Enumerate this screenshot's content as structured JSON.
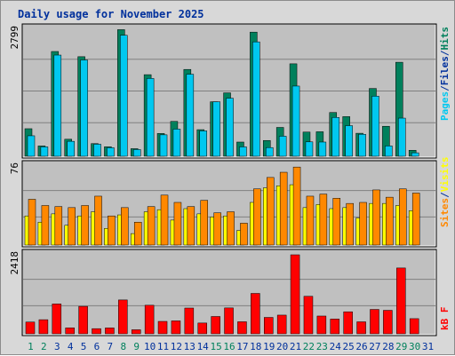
{
  "page": {
    "title": "Daily usage for November 2025"
  },
  "chart_data": [
    {
      "type": "bar",
      "name": "hits-files-pages",
      "categories": [
        "1",
        "2",
        "3",
        "4",
        "5",
        "6",
        "7",
        "8",
        "9",
        "10",
        "11",
        "12",
        "13",
        "14",
        "15",
        "16",
        "17",
        "18",
        "19",
        "20",
        "21",
        "22",
        "23",
        "24",
        "25",
        "26",
        "27",
        "28",
        "29",
        "30",
        "31"
      ],
      "weekend_days": [
        "1",
        "2",
        "8",
        "9",
        "15",
        "16",
        "22",
        "23",
        "29",
        "30"
      ],
      "ymax_label": "2799",
      "ylim": [
        0,
        2799
      ],
      "series": [
        {
          "name": "Hits",
          "color": "#00805c",
          "values": [
            599,
            224,
            2278,
            370,
            2165,
            275,
            206,
            2753,
            165,
            1774,
            495,
            758,
            1888,
            578,
            1185,
            1379,
            309,
            2699,
            343,
            627,
            2010,
            526,
            533,
            952,
            862,
            500,
            1474,
            652,
            2044,
            130,
            0
          ]
        },
        {
          "name": "Files",
          "color": "#00c8f0",
          "values": [
            445,
            204,
            2200,
            325,
            2094,
            262,
            185,
            2630,
            146,
            1692,
            466,
            590,
            1783,
            552,
            1185,
            1262,
            204,
            2487,
            189,
            436,
            1526,
            313,
            309,
            844,
            665,
            478,
            1306,
            224,
            829,
            75,
            0
          ]
        },
        {
          "name": "Pages",
          "color": "#00c8f0",
          "values": [
            0,
            0,
            0,
            0,
            0,
            0,
            0,
            0,
            0,
            0,
            0,
            0,
            0,
            0,
            0,
            0,
            0,
            0,
            0,
            0,
            0,
            0,
            0,
            0,
            0,
            0,
            0,
            0,
            0,
            0,
            0
          ]
        }
      ],
      "y_legend": {
        "pages": "Pages",
        "files": "Files",
        "hits": "Hits",
        "separator": "/"
      }
    },
    {
      "type": "bar",
      "name": "sites-visits",
      "categories": [
        "1",
        "2",
        "3",
        "4",
        "5",
        "6",
        "7",
        "8",
        "9",
        "10",
        "11",
        "12",
        "13",
        "14",
        "15",
        "16",
        "17",
        "18",
        "19",
        "20",
        "21",
        "22",
        "23",
        "24",
        "25",
        "26",
        "27",
        "28",
        "29",
        "30",
        "31"
      ],
      "ymax_label": "76",
      "ylim": [
        0,
        76
      ],
      "series": [
        {
          "name": "Visits",
          "color": "#ffff00",
          "values": [
            28,
            22,
            30,
            19,
            28,
            32,
            16,
            29,
            11,
            32,
            34,
            24,
            35,
            30,
            27,
            28,
            14,
            41,
            55,
            57,
            58,
            36,
            39,
            35,
            36,
            26,
            40,
            40,
            38,
            33,
            0
          ]
        },
        {
          "name": "Sites",
          "color": "#ff8800",
          "values": [
            44,
            38,
            37,
            36,
            38,
            47,
            28,
            36,
            22,
            37,
            48,
            41,
            37,
            43,
            31,
            32,
            21,
            54,
            65,
            70,
            75,
            47,
            49,
            45,
            40,
            41,
            53,
            46,
            54,
            50,
            0
          ]
        }
      ],
      "y_legend": {
        "sites": "Sites",
        "visits": "Visits",
        "separator": "/"
      }
    },
    {
      "type": "bar",
      "name": "kbytes",
      "categories": [
        "1",
        "2",
        "3",
        "4",
        "5",
        "6",
        "7",
        "8",
        "9",
        "10",
        "11",
        "12",
        "13",
        "14",
        "15",
        "16",
        "17",
        "18",
        "19",
        "20",
        "21",
        "22",
        "23",
        "24",
        "25",
        "26",
        "27",
        "28",
        "29",
        "30",
        "31"
      ],
      "ymax_label": "2418",
      "ylim": [
        0,
        2418
      ],
      "series": [
        {
          "name": "kB F",
          "color": "#ff0000",
          "values": [
            360,
            432,
            914,
            182,
            840,
            158,
            180,
            1036,
            124,
            874,
            380,
            396,
            788,
            330,
            530,
            792,
            369,
            1236,
            502,
            572,
            2418,
            1148,
            544,
            452,
            674,
            367,
            746,
            719,
            2014,
            464,
            0
          ]
        }
      ],
      "y_legend": {
        "kbytes": "kB F"
      }
    }
  ],
  "colors": {
    "plot_bg": "#c0c0c0",
    "frame_bg": "#d8d8d8",
    "title": "#00309c",
    "weekday_label": "#00309c",
    "weekend_label": "#00805c",
    "grid": "#808080"
  }
}
